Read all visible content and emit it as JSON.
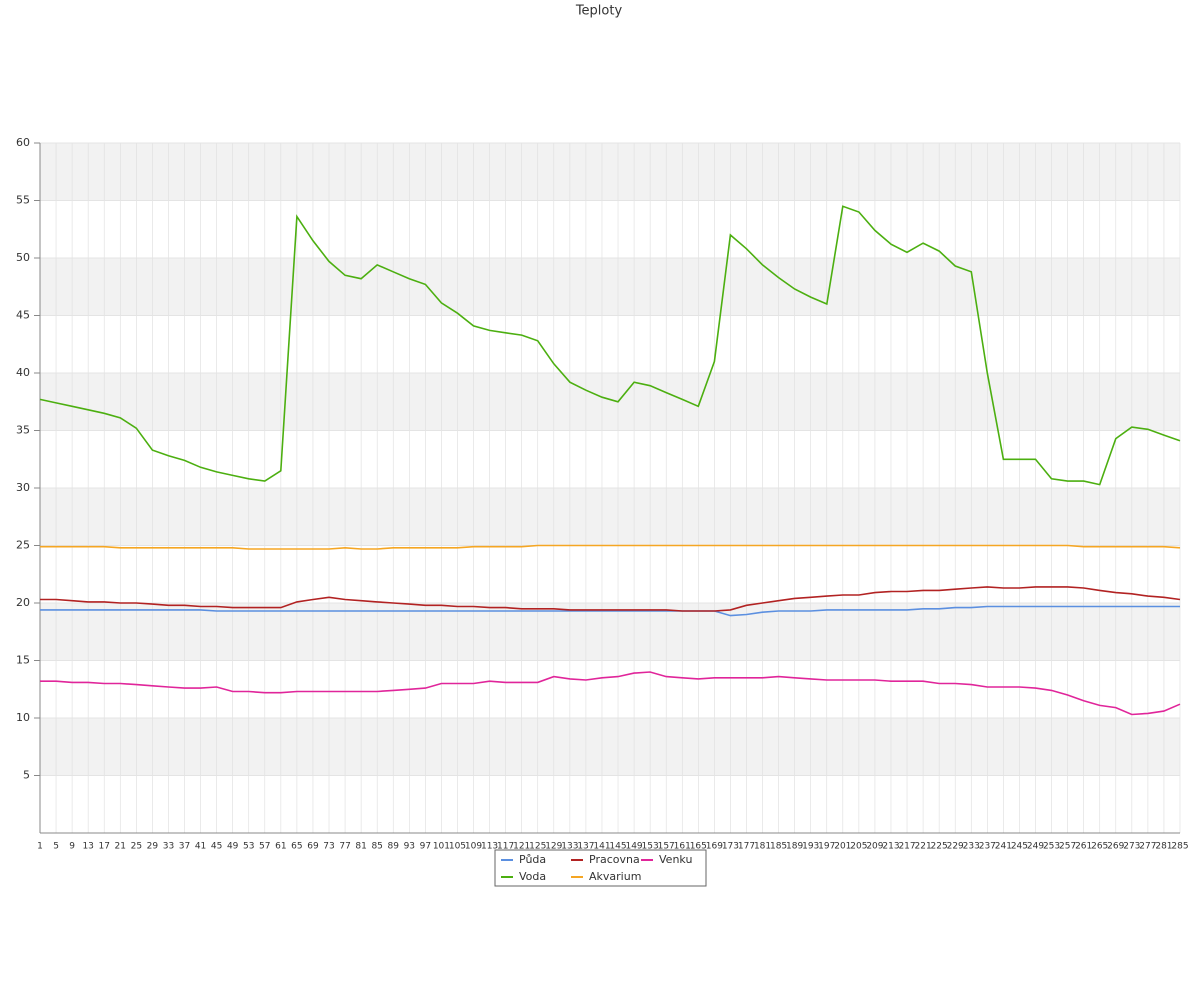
{
  "chart_data": {
    "type": "line",
    "title": "Teploty",
    "categories": [
      "1",
      "5",
      "9",
      "13",
      "17",
      "21",
      "25",
      "29",
      "33",
      "37",
      "41",
      "45",
      "49",
      "53",
      "57",
      "61",
      "65",
      "69",
      "73",
      "77",
      "81",
      "85",
      "89",
      "93",
      "97",
      "101",
      "105",
      "109",
      "113",
      "117",
      "121",
      "125",
      "129",
      "133",
      "137",
      "141",
      "145",
      "149",
      "153",
      "157",
      "161",
      "165",
      "169",
      "173",
      "177",
      "181",
      "185",
      "189",
      "193",
      "197",
      "201",
      "205",
      "209",
      "213",
      "217",
      "221",
      "225",
      "229",
      "233",
      "237",
      "241",
      "245",
      "249",
      "253",
      "257",
      "261",
      "265",
      "269",
      "273",
      "277",
      "281",
      "285"
    ],
    "ylim": [
      0,
      60
    ],
    "yticks": [
      5,
      10,
      15,
      20,
      25,
      30,
      35,
      40,
      45,
      50,
      55,
      60
    ],
    "grid": true,
    "series": [
      {
        "name": "Půda",
        "color": "#5b8fe0",
        "values": [
          19.4,
          19.4,
          19.4,
          19.4,
          19.4,
          19.4,
          19.4,
          19.4,
          19.4,
          19.4,
          19.4,
          19.3,
          19.3,
          19.3,
          19.3,
          19.3,
          19.3,
          19.3,
          19.3,
          19.3,
          19.3,
          19.3,
          19.3,
          19.3,
          19.3,
          19.3,
          19.3,
          19.3,
          19.3,
          19.3,
          19.3,
          19.3,
          19.3,
          19.3,
          19.3,
          19.3,
          19.3,
          19.3,
          19.3,
          19.3,
          19.3,
          19.3,
          19.3,
          18.9,
          19.0,
          19.2,
          19.3,
          19.3,
          19.3,
          19.4,
          19.4,
          19.4,
          19.4,
          19.4,
          19.4,
          19.5,
          19.5,
          19.6,
          19.6,
          19.7,
          19.7,
          19.7,
          19.7,
          19.7,
          19.7,
          19.7,
          19.7,
          19.7,
          19.7,
          19.7,
          19.7,
          19.7
        ]
      },
      {
        "name": "Pracovna",
        "color": "#b22222",
        "values": [
          20.3,
          20.3,
          20.2,
          20.1,
          20.1,
          20.0,
          20.0,
          19.9,
          19.8,
          19.8,
          19.7,
          19.7,
          19.6,
          19.6,
          19.6,
          19.6,
          20.1,
          20.3,
          20.5,
          20.3,
          20.2,
          20.1,
          20.0,
          19.9,
          19.8,
          19.8,
          19.7,
          19.7,
          19.6,
          19.6,
          19.5,
          19.5,
          19.5,
          19.4,
          19.4,
          19.4,
          19.4,
          19.4,
          19.4,
          19.4,
          19.3,
          19.3,
          19.3,
          19.4,
          19.8,
          20.0,
          20.2,
          20.4,
          20.5,
          20.6,
          20.7,
          20.7,
          20.9,
          21.0,
          21.0,
          21.1,
          21.1,
          21.2,
          21.3,
          21.4,
          21.3,
          21.3,
          21.4,
          21.4,
          21.4,
          21.3,
          21.1,
          20.9,
          20.8,
          20.6,
          20.5,
          20.3
        ]
      },
      {
        "name": "Venku",
        "color": "#e0259a",
        "values": [
          13.2,
          13.2,
          13.1,
          13.1,
          13.0,
          13.0,
          12.9,
          12.8,
          12.7,
          12.6,
          12.6,
          12.7,
          12.3,
          12.3,
          12.2,
          12.2,
          12.3,
          12.3,
          12.3,
          12.3,
          12.3,
          12.3,
          12.4,
          12.5,
          12.6,
          13.0,
          13.0,
          13.0,
          13.2,
          13.1,
          13.1,
          13.1,
          13.6,
          13.4,
          13.3,
          13.5,
          13.6,
          13.9,
          14.0,
          13.6,
          13.5,
          13.4,
          13.5,
          13.5,
          13.5,
          13.5,
          13.6,
          13.5,
          13.4,
          13.3,
          13.3,
          13.3,
          13.3,
          13.2,
          13.2,
          13.2,
          13.0,
          13.0,
          12.9,
          12.7,
          12.7,
          12.7,
          12.6,
          12.4,
          12.0,
          11.5,
          11.1,
          10.9,
          10.3,
          10.4,
          10.6,
          11.2
        ]
      },
      {
        "name": "Voda",
        "color": "#4caf10",
        "values": [
          37.7,
          37.4,
          37.1,
          36.8,
          36.5,
          36.1,
          35.2,
          33.3,
          32.8,
          32.4,
          31.8,
          31.4,
          31.1,
          30.8,
          30.6,
          31.5,
          53.6,
          51.5,
          49.7,
          48.5,
          48.2,
          49.4,
          48.8,
          48.2,
          47.7,
          46.1,
          45.2,
          44.1,
          43.7,
          43.5,
          43.3,
          42.8,
          40.8,
          39.2,
          38.5,
          37.9,
          37.5,
          39.2,
          38.9,
          38.3,
          37.7,
          37.1,
          41.0,
          52.0,
          50.8,
          49.4,
          48.3,
          47.3,
          46.6,
          46.0,
          54.5,
          54.0,
          52.4,
          51.2,
          50.5,
          51.3,
          50.6,
          49.3,
          48.8,
          40.0,
          32.5,
          32.5,
          32.5,
          30.8,
          30.6,
          30.6,
          30.3,
          34.3,
          35.3,
          35.1,
          34.6,
          34.1
        ]
      },
      {
        "name": "Akvarium",
        "color": "#f5a623",
        "values": [
          24.9,
          24.9,
          24.9,
          24.9,
          24.9,
          24.8,
          24.8,
          24.8,
          24.8,
          24.8,
          24.8,
          24.8,
          24.8,
          24.7,
          24.7,
          24.7,
          24.7,
          24.7,
          24.7,
          24.8,
          24.7,
          24.7,
          24.8,
          24.8,
          24.8,
          24.8,
          24.8,
          24.9,
          24.9,
          24.9,
          24.9,
          25.0,
          25.0,
          25.0,
          25.0,
          25.0,
          25.0,
          25.0,
          25.0,
          25.0,
          25.0,
          25.0,
          25.0,
          25.0,
          25.0,
          25.0,
          25.0,
          25.0,
          25.0,
          25.0,
          25.0,
          25.0,
          25.0,
          25.0,
          25.0,
          25.0,
          25.0,
          25.0,
          25.0,
          25.0,
          25.0,
          25.0,
          25.0,
          25.0,
          25.0,
          24.9,
          24.9,
          24.9,
          24.9,
          24.9,
          24.9,
          24.8
        ]
      }
    ]
  }
}
